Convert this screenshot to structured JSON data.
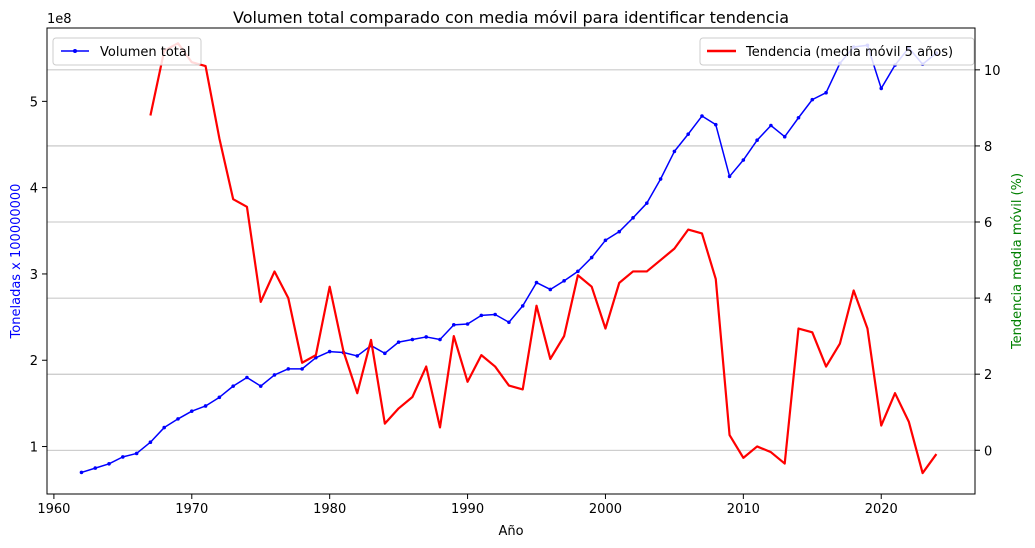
{
  "chart_data": {
    "type": "line",
    "title": "Volumen total comparado con media móvil para identificar tendencia",
    "xlabel": "Año",
    "ylabel_left": "Toneladas x 100000000",
    "ylabel_right": "Tendencia media móvil (%)",
    "left_offset_label": "1e8",
    "xlim": [
      1959.5,
      2026.8
    ],
    "ylim_left": [
      0.45,
      5.85
    ],
    "ylim_right": [
      -1.15,
      11.1
    ],
    "x_ticks": [
      1960,
      1970,
      1980,
      1990,
      2000,
      2010,
      2020
    ],
    "y_ticks_left": [
      1,
      2,
      3,
      4,
      5
    ],
    "y_ticks_right": [
      0,
      2,
      4,
      6,
      8,
      10
    ],
    "grid": "horizontal, right axis",
    "series": [
      {
        "name": "Volumen total",
        "axis": "left",
        "color": "#0000ff",
        "marker": "point",
        "x": [
          1962,
          1963,
          1964,
          1965,
          1966,
          1967,
          1968,
          1969,
          1970,
          1971,
          1972,
          1973,
          1974,
          1975,
          1976,
          1977,
          1978,
          1979,
          1980,
          1981,
          1982,
          1983,
          1984,
          1985,
          1986,
          1987,
          1988,
          1989,
          1990,
          1991,
          1992,
          1993,
          1994,
          1995,
          1996,
          1997,
          1998,
          1999,
          2000,
          2001,
          2002,
          2003,
          2004,
          2005,
          2006,
          2007,
          2008,
          2009,
          2010,
          2011,
          2012,
          2013,
          2014,
          2015,
          2016,
          2017,
          2018,
          2019,
          2020,
          2021,
          2022,
          2023,
          2024
        ],
        "values": [
          0.7,
          0.75,
          0.8,
          0.88,
          0.92,
          1.05,
          1.22,
          1.32,
          1.41,
          1.47,
          1.57,
          1.7,
          1.8,
          1.7,
          1.83,
          1.9,
          1.9,
          2.03,
          2.1,
          2.09,
          2.05,
          2.17,
          2.08,
          2.21,
          2.24,
          2.27,
          2.24,
          2.41,
          2.42,
          2.52,
          2.53,
          2.44,
          2.63,
          2.9,
          2.82,
          2.92,
          3.03,
          3.19,
          3.39,
          3.49,
          3.65,
          3.82,
          4.1,
          4.42,
          4.62,
          4.83,
          4.73,
          4.13,
          4.32,
          4.55,
          4.72,
          4.59,
          4.81,
          5.02,
          5.1,
          5.44,
          5.63,
          5.65,
          5.15,
          5.42,
          5.62,
          5.43,
          5.56
        ]
      },
      {
        "name": "Tendencia (media móvil 5 años)",
        "axis": "right",
        "color": "#ff0000",
        "x": [
          1967,
          1968,
          1969,
          1970,
          1971,
          1972,
          1973,
          1974,
          1975,
          1976,
          1977,
          1978,
          1979,
          1980,
          1981,
          1982,
          1983,
          1984,
          1985,
          1986,
          1987,
          1988,
          1989,
          1990,
          1991,
          1992,
          1993,
          1994,
          1995,
          1996,
          1997,
          1998,
          1999,
          2000,
          2001,
          2002,
          2003,
          2004,
          2005,
          2006,
          2007,
          2008,
          2009,
          2010,
          2011,
          2012,
          2013,
          2014,
          2015,
          2016,
          2017,
          2018,
          2019,
          2020,
          2021,
          2022,
          2023,
          2024
        ],
        "values": [
          8.8,
          10.5,
          10.7,
          10.2,
          10.1,
          8.2,
          6.6,
          6.4,
          3.9,
          4.7,
          4.0,
          2.3,
          2.5,
          4.3,
          2.6,
          1.5,
          2.9,
          0.7,
          1.1,
          1.4,
          2.2,
          0.6,
          3.0,
          1.8,
          2.5,
          2.2,
          1.7,
          1.6,
          3.8,
          2.4,
          3.0,
          4.6,
          4.3,
          3.2,
          4.4,
          4.7,
          4.7,
          5.0,
          5.3,
          5.8,
          5.7,
          4.5,
          0.4,
          -0.2,
          0.1,
          -0.05,
          -0.35,
          3.2,
          3.1,
          2.2,
          2.8,
          4.2,
          3.2,
          0.65,
          1.5,
          0.75,
          -0.6,
          -0.1
        ]
      }
    ]
  }
}
